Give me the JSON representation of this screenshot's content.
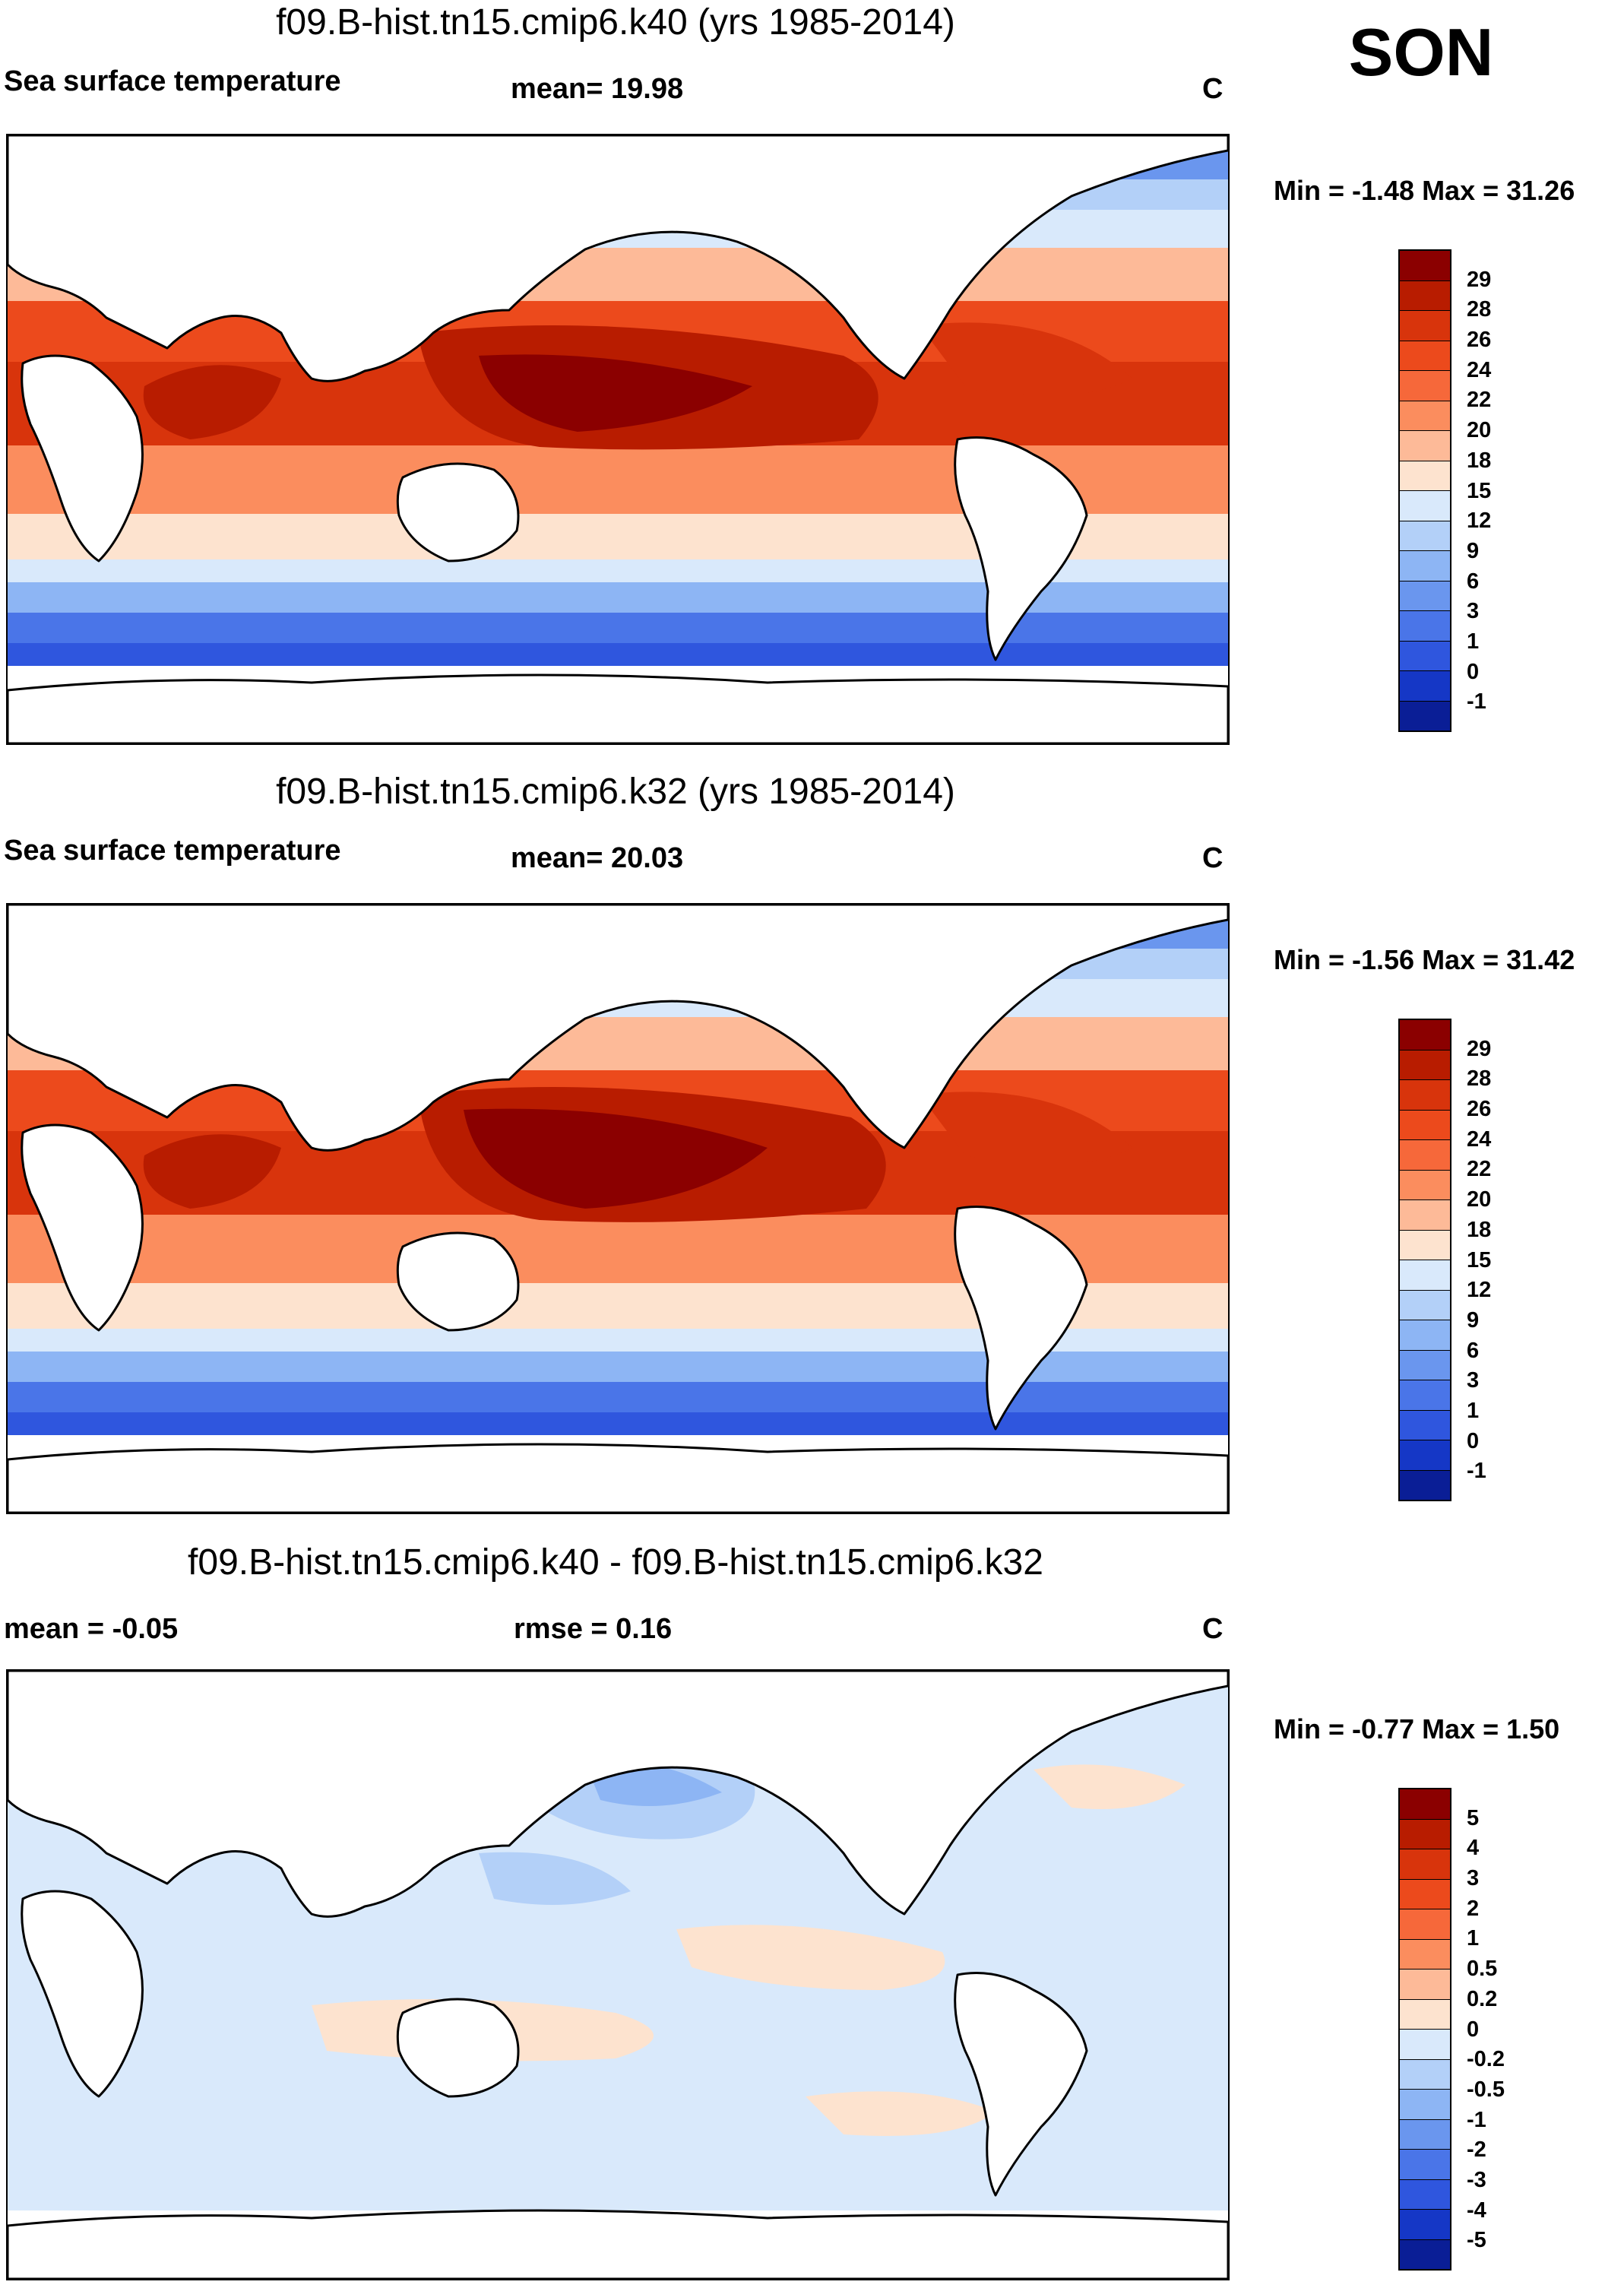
{
  "season": "SON",
  "units": "C",
  "panels": [
    {
      "id": "k40",
      "title": "f09.B-hist.tn15.cmip6.k40 (yrs 1985-2014)",
      "left_label": "Sea surface temperature",
      "stat_label": "mean=  19.98",
      "units": "C",
      "minmax": "Min =  -1.48 Max =  31.26",
      "levels": [
        "29",
        "28",
        "26",
        "24",
        "22",
        "20",
        "18",
        "15",
        "12",
        "9",
        "6",
        "3",
        "1",
        "0",
        "-1"
      ],
      "colors": [
        "#8b0000",
        "#b81c00",
        "#d8340c",
        "#ec4a1c",
        "#f6683a",
        "#fb8d5e",
        "#fdba98",
        "#fde3cf",
        "#d9e9fb",
        "#b3d0f8",
        "#8db5f4",
        "#6a96ee",
        "#4a75e8",
        "#2f56de",
        "#1537c6",
        "#0a1e96"
      ]
    },
    {
      "id": "k32",
      "title": "f09.B-hist.tn15.cmip6.k32 (yrs 1985-2014)",
      "left_label": "Sea surface temperature",
      "stat_label": "mean=  20.03",
      "units": "C",
      "minmax": "Min =  -1.56 Max =  31.42",
      "levels": [
        "29",
        "28",
        "26",
        "24",
        "22",
        "20",
        "18",
        "15",
        "12",
        "9",
        "6",
        "3",
        "1",
        "0",
        "-1"
      ],
      "colors": [
        "#8b0000",
        "#b81c00",
        "#d8340c",
        "#ec4a1c",
        "#f6683a",
        "#fb8d5e",
        "#fdba98",
        "#fde3cf",
        "#d9e9fb",
        "#b3d0f8",
        "#8db5f4",
        "#6a96ee",
        "#4a75e8",
        "#2f56de",
        "#1537c6",
        "#0a1e96"
      ]
    },
    {
      "id": "diff",
      "title": "f09.B-hist.tn15.cmip6.k40 - f09.B-hist.tn15.cmip6.k32",
      "left_label": "mean =  -0.05",
      "stat_label": "rmse =   0.16",
      "units": "C",
      "minmax": "Min =  -0.77 Max =   1.50",
      "levels": [
        "5",
        "4",
        "3",
        "2",
        "1",
        "0.5",
        "0.2",
        "0",
        "-0.2",
        "-0.5",
        "-1",
        "-2",
        "-3",
        "-4",
        "-5"
      ],
      "colors": [
        "#8b0000",
        "#b81c00",
        "#d8340c",
        "#ec4a1c",
        "#f6683a",
        "#fb8d5e",
        "#fdba98",
        "#fde3cf",
        "#d9e9fb",
        "#b3d0f8",
        "#8db5f4",
        "#6a96ee",
        "#4a75e8",
        "#2f56de",
        "#1537c6",
        "#0a1e96"
      ]
    }
  ]
}
